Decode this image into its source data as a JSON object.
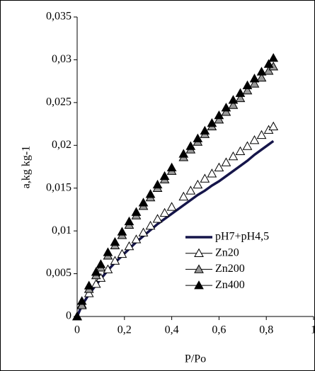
{
  "chart_data": {
    "type": "line",
    "xlabel": "P/Po",
    "ylabel": "a,kg kg-1",
    "x": [
      0,
      0.02,
      0.05,
      0.08,
      0.1,
      0.13,
      0.16,
      0.19,
      0.22,
      0.25,
      0.28,
      0.31,
      0.34,
      0.37,
      0.4,
      0.45,
      0.48,
      0.51,
      0.54,
      0.57,
      0.6,
      0.63,
      0.66,
      0.69,
      0.72,
      0.75,
      0.78,
      0.81,
      0.83
    ],
    "series": [
      {
        "name": "pH7+pH4,5",
        "color": "#15154a",
        "style": "line",
        "values": [
          0,
          0.0013,
          0.0026,
          0.0037,
          0.0044,
          0.0054,
          0.0063,
          0.0071,
          0.0079,
          0.0087,
          0.0094,
          0.0101,
          0.0108,
          0.0114,
          0.012,
          0.013,
          0.0136,
          0.0142,
          0.0147,
          0.0153,
          0.0158,
          0.0164,
          0.017,
          0.0176,
          0.0182,
          0.0189,
          0.0195,
          0.0201,
          0.0205
        ]
      },
      {
        "name": "Zn20",
        "color": "#ffffff",
        "style": "marker",
        "values": [
          0,
          0.0014,
          0.0027,
          0.0038,
          0.0045,
          0.0055,
          0.0065,
          0.0073,
          0.0082,
          0.009,
          0.0098,
          0.0106,
          0.0114,
          0.0121,
          0.0128,
          0.014,
          0.0147,
          0.0154,
          0.0161,
          0.0167,
          0.0174,
          0.018,
          0.0187,
          0.0193,
          0.0199,
          0.0206,
          0.0212,
          0.0218,
          0.0222
        ]
      },
      {
        "name": "Zn200",
        "color": "#999999",
        "style": "marker",
        "values": [
          0,
          0.0013,
          0.0032,
          0.0048,
          0.0057,
          0.0071,
          0.0083,
          0.0095,
          0.0107,
          0.0118,
          0.0129,
          0.0139,
          0.015,
          0.016,
          0.017,
          0.0186,
          0.0195,
          0.0204,
          0.0213,
          0.0222,
          0.023,
          0.0239,
          0.0247,
          0.0255,
          0.0264,
          0.0272,
          0.0279,
          0.0287,
          0.0292
        ]
      },
      {
        "name": "Zn400",
        "color": "#000000",
        "style": "marker",
        "values": [
          0,
          0.0018,
          0.0036,
          0.0052,
          0.0061,
          0.0075,
          0.0087,
          0.0099,
          0.0111,
          0.0122,
          0.0133,
          0.0143,
          0.0154,
          0.0164,
          0.0174,
          0.019,
          0.0199,
          0.0208,
          0.0217,
          0.0226,
          0.0235,
          0.0244,
          0.0253,
          0.0261,
          0.027,
          0.0278,
          0.0286,
          0.0295,
          0.0302
        ]
      }
    ],
    "xlim": [
      0,
      1
    ],
    "xticks": [
      0,
      {
        "value": 0.2,
        "label": "0,2"
      },
      {
        "value": 0.4,
        "label": "0,4"
      },
      {
        "value": 0.6,
        "label": "0,6"
      },
      {
        "value": 0.8,
        "label": "0,8"
      },
      1
    ],
    "ylim": [
      0,
      0.035
    ],
    "yticks": [
      0,
      {
        "value": 0.005,
        "label": "0,005"
      },
      {
        "value": 0.01,
        "label": "0,01"
      },
      {
        "value": 0.015,
        "label": "0,015"
      },
      {
        "value": 0.02,
        "label": "0,02"
      },
      {
        "value": 0.025,
        "label": "0,025"
      },
      {
        "value": 0.03,
        "label": "0,03"
      },
      {
        "value": 0.035,
        "label": "0,035"
      }
    ],
    "grid": false
  }
}
